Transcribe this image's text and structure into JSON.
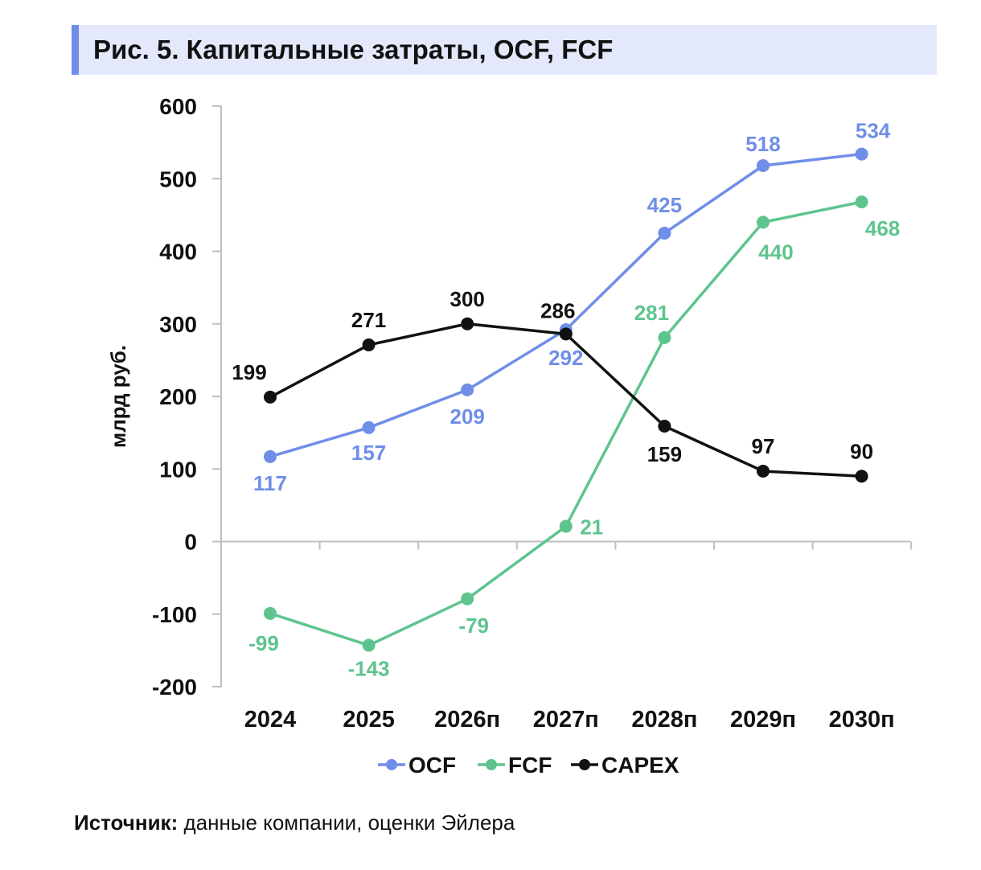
{
  "title": "Рис. 5. Капитальные затраты, OCF, FCF",
  "source": {
    "label": "Источник:",
    "text": " данные компании, оценки Эйлера"
  },
  "colors": {
    "OCF": "#6f8ee8",
    "FCF": "#5ec48e",
    "CAPEX": "#111111",
    "title_bg": "#e4e8fb",
    "title_accent": "#6f8ee8"
  },
  "chart_data": {
    "type": "line",
    "categories": [
      "2024",
      "2025",
      "2026п",
      "2027п",
      "2028п",
      "2029п",
      "2030п"
    ],
    "series": [
      {
        "name": "OCF",
        "values": [
          117,
          157,
          209,
          292,
          425,
          518,
          534
        ]
      },
      {
        "name": "FCF",
        "values": [
          -99,
          -143,
          -79,
          21,
          281,
          440,
          468
        ]
      },
      {
        "name": "CAPEX",
        "values": [
          199,
          271,
          300,
          286,
          159,
          97,
          90
        ]
      }
    ],
    "ylabel": "млрд руб.",
    "xlabel": "",
    "ylim": [
      -200,
      600
    ],
    "yticks": [
      "600",
      "500",
      "400",
      "300",
      "200",
      "100",
      "0",
      "-100",
      "-200"
    ],
    "legend": "bottom",
    "grid": false
  }
}
